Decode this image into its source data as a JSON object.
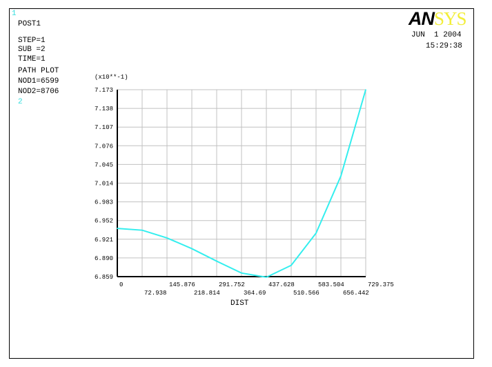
{
  "window_number": "1",
  "info": {
    "title": "POST1",
    "lines": [
      "STEP=1",
      "SUB =2",
      "TIME=1",
      "PATH PLOT",
      "NOD1=6599",
      "NOD2=8706"
    ],
    "curve_number": "2"
  },
  "logo": {
    "part1": "AN",
    "part2": "SYS"
  },
  "date": "JUN  1 2004",
  "time": "15:29:38",
  "colors": {
    "curve": "#33eeee",
    "grid": "#c0c0c0",
    "axis": "#000000",
    "logo_sys": "#f2ee3a"
  },
  "chart_data": {
    "type": "line",
    "xlabel": "DIST",
    "ylabel": "",
    "y_multiplier": "(x10**-1)",
    "xlim": [
      0,
      729.375
    ],
    "ylim": [
      6.859,
      7.173
    ],
    "grid": true,
    "x_ticks": [
      "0",
      "72.938",
      "145.876",
      "218.814",
      "291.752",
      "364.69",
      "437.628",
      "510.566",
      "583.504",
      "656.442",
      "729.375"
    ],
    "y_ticks": [
      "6.859",
      "6.890",
      "6.921",
      "6.952",
      "6.983",
      "7.014",
      "7.045",
      "7.076",
      "7.107",
      "7.138",
      "7.173"
    ],
    "series": [
      {
        "x": [
          0,
          72.938,
          145.876,
          218.814,
          291.752,
          364.69,
          437.628,
          510.566,
          583.504,
          656.442,
          729.375
        ],
        "y": [
          6.94,
          6.937,
          6.924,
          6.906,
          6.885,
          6.865,
          6.858,
          6.878,
          6.932,
          7.028,
          7.173
        ]
      }
    ]
  }
}
